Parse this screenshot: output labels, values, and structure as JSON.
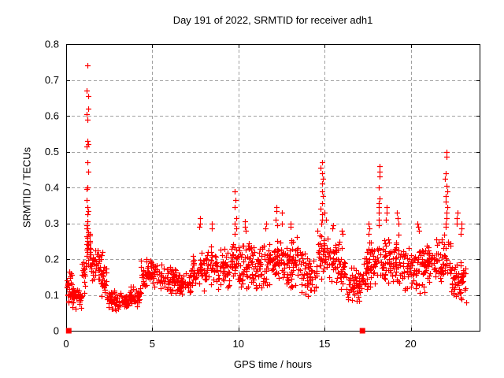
{
  "chart_data": {
    "type": "scatter",
    "title": "Day 191 of 2022, SRMTID for receiver adh1",
    "xlabel": "GPS time / hours",
    "ylabel": "SRMTID / TECUs",
    "xlim": [
      0,
      24
    ],
    "ylim": [
      0,
      0.8
    ],
    "xticks": {
      "values": [
        0,
        5,
        10,
        15,
        20
      ],
      "labels": [
        "0",
        "5",
        "10",
        "15",
        "20"
      ]
    },
    "yticks": {
      "values": [
        0,
        0.1,
        0.2,
        0.3,
        0.4,
        0.5,
        0.6,
        0.7,
        0.8
      ],
      "labels": [
        "0",
        "0.1",
        "0.2",
        "0.3",
        "0.4",
        "0.5",
        "0.6",
        "0.7",
        "0.8"
      ]
    },
    "grid": {
      "on": true,
      "color": "#a0a0a0",
      "dash": "4,3"
    },
    "legend": "none",
    "marker": {
      "type": "plus",
      "color": "#ff0000",
      "size": 7
    },
    "zero_marker": {
      "type": "filled-square",
      "color": "#ff0000",
      "size": 7
    },
    "background": "#ffffff",
    "seed": 191,
    "x_quantize": 120,
    "segments": [
      {
        "x0": 0.02,
        "x1": 0.3,
        "n": 26,
        "lo": 0.07,
        "hi": 0.18
      },
      {
        "x0": 0.3,
        "x1": 0.9,
        "n": 40,
        "lo": 0.055,
        "hi": 0.13
      },
      {
        "x0": 0.9,
        "x1": 1.15,
        "n": 18,
        "lo": 0.1,
        "hi": 0.22
      },
      {
        "x0": 1.15,
        "x1": 1.45,
        "n": 20,
        "lo": 0.16,
        "hi": 0.3
      },
      {
        "x0": 1.45,
        "x1": 1.95,
        "n": 35,
        "lo": 0.12,
        "hi": 0.24
      },
      {
        "x0": 1.95,
        "x1": 2.35,
        "n": 28,
        "lo": 0.085,
        "hi": 0.2
      },
      {
        "x0": 2.35,
        "x1": 3.25,
        "n": 55,
        "lo": 0.055,
        "hi": 0.115
      },
      {
        "x0": 3.25,
        "x1": 3.65,
        "n": 42,
        "lo": 0.06,
        "hi": 0.1
      },
      {
        "x0": 3.65,
        "x1": 4.35,
        "n": 40,
        "lo": 0.065,
        "hi": 0.13
      },
      {
        "x0": 4.35,
        "x1": 5.35,
        "n": 60,
        "lo": 0.115,
        "hi": 0.205
      },
      {
        "x0": 5.35,
        "x1": 6.35,
        "n": 62,
        "lo": 0.1,
        "hi": 0.19
      },
      {
        "x0": 6.35,
        "x1": 7.25,
        "n": 52,
        "lo": 0.09,
        "hi": 0.17
      },
      {
        "x0": 7.25,
        "x1": 8.15,
        "n": 55,
        "lo": 0.11,
        "hi": 0.22
      },
      {
        "x0": 8.15,
        "x1": 8.75,
        "n": 36,
        "lo": 0.12,
        "hi": 0.25
      },
      {
        "x0": 8.75,
        "x1": 9.55,
        "n": 46,
        "lo": 0.1,
        "hi": 0.235
      },
      {
        "x0": 9.55,
        "x1": 10.15,
        "n": 38,
        "lo": 0.12,
        "hi": 0.26
      },
      {
        "x0": 10.15,
        "x1": 11.15,
        "n": 62,
        "lo": 0.1,
        "hi": 0.255
      },
      {
        "x0": 11.15,
        "x1": 12.05,
        "n": 58,
        "lo": 0.11,
        "hi": 0.26
      },
      {
        "x0": 12.05,
        "x1": 12.65,
        "n": 40,
        "lo": 0.12,
        "hi": 0.275
      },
      {
        "x0": 12.65,
        "x1": 13.65,
        "n": 62,
        "lo": 0.11,
        "hi": 0.265
      },
      {
        "x0": 13.65,
        "x1": 14.55,
        "n": 55,
        "lo": 0.085,
        "hi": 0.225
      },
      {
        "x0": 14.55,
        "x1": 15.25,
        "n": 42,
        "lo": 0.13,
        "hi": 0.285
      },
      {
        "x0": 15.25,
        "x1": 16.25,
        "n": 58,
        "lo": 0.11,
        "hi": 0.255
      },
      {
        "x0": 16.25,
        "x1": 17.25,
        "n": 56,
        "lo": 0.06,
        "hi": 0.185
      },
      {
        "x0": 17.25,
        "x1": 18.05,
        "n": 50,
        "lo": 0.1,
        "hi": 0.25
      },
      {
        "x0": 18.05,
        "x1": 18.4,
        "n": 16,
        "lo": 0.13,
        "hi": 0.26
      },
      {
        "x0": 18.4,
        "x1": 19.05,
        "n": 40,
        "lo": 0.11,
        "hi": 0.265
      },
      {
        "x0": 19.05,
        "x1": 19.65,
        "n": 36,
        "lo": 0.12,
        "hi": 0.275
      },
      {
        "x0": 19.65,
        "x1": 20.85,
        "n": 72,
        "lo": 0.1,
        "hi": 0.26
      },
      {
        "x0": 20.85,
        "x1": 21.85,
        "n": 62,
        "lo": 0.12,
        "hi": 0.265
      },
      {
        "x0": 21.85,
        "x1": 22.35,
        "n": 24,
        "lo": 0.13,
        "hi": 0.28
      },
      {
        "x0": 22.35,
        "x1": 23.2,
        "n": 55,
        "lo": 0.07,
        "hi": 0.2
      }
    ],
    "spikes": [
      {
        "x": 1.22,
        "jitter": 0.05,
        "ys": [
          0.74,
          0.67,
          0.655,
          0.62,
          0.605,
          0.59,
          0.53,
          0.52,
          0.515,
          0.47,
          0.445,
          0.4,
          0.395,
          0.365,
          0.345,
          0.335,
          0.325,
          0.305,
          0.295,
          0.285,
          0.275,
          0.26,
          0.25,
          0.24,
          0.23,
          0.22
        ]
      },
      {
        "x": 2.05,
        "jitter": 0.06,
        "ys": [
          0.22,
          0.21,
          0.2
        ]
      },
      {
        "x": 7.8,
        "jitter": 0.07,
        "ys": [
          0.315,
          0.3,
          0.29
        ]
      },
      {
        "x": 8.45,
        "jitter": 0.06,
        "ys": [
          0.3,
          0.285
        ]
      },
      {
        "x": 9.8,
        "jitter": 0.08,
        "ys": [
          0.39,
          0.365,
          0.345,
          0.315,
          0.3,
          0.285,
          0.27
        ]
      },
      {
        "x": 10.4,
        "jitter": 0.08,
        "ys": [
          0.305,
          0.29,
          0.28
        ]
      },
      {
        "x": 11.6,
        "jitter": 0.06,
        "ys": [
          0.3,
          0.285
        ]
      },
      {
        "x": 12.25,
        "jitter": 0.09,
        "ys": [
          0.345,
          0.335,
          0.31,
          0.295
        ]
      },
      {
        "x": 12.55,
        "jitter": 0.05,
        "ys": [
          0.33,
          0.3
        ]
      },
      {
        "x": 13.0,
        "jitter": 0.06,
        "ys": [
          0.3,
          0.29
        ]
      },
      {
        "x": 14.85,
        "jitter": 0.07,
        "ys": [
          0.47,
          0.455,
          0.44,
          0.425,
          0.41,
          0.39,
          0.375,
          0.355,
          0.34,
          0.325,
          0.31,
          0.3
        ]
      },
      {
        "x": 15.05,
        "jitter": 0.05,
        "ys": [
          0.33,
          0.31
        ]
      },
      {
        "x": 15.5,
        "jitter": 0.05,
        "ys": [
          0.295,
          0.285
        ]
      },
      {
        "x": 16.0,
        "jitter": 0.05,
        "ys": [
          0.28,
          0.27
        ]
      },
      {
        "x": 17.55,
        "jitter": 0.07,
        "ys": [
          0.3,
          0.285,
          0.27
        ]
      },
      {
        "x": 18.15,
        "jitter": 0.06,
        "ys": [
          0.46,
          0.445,
          0.43,
          0.4,
          0.37,
          0.355,
          0.345,
          0.33,
          0.31,
          0.295
        ]
      },
      {
        "x": 18.6,
        "jitter": 0.06,
        "ys": [
          0.345,
          0.33,
          0.31
        ]
      },
      {
        "x": 19.25,
        "jitter": 0.07,
        "ys": [
          0.33,
          0.315,
          0.3
        ]
      },
      {
        "x": 20.45,
        "jitter": 0.1,
        "ys": [
          0.3,
          0.29,
          0.28
        ]
      },
      {
        "x": 22.05,
        "jitter": 0.08,
        "ys": [
          0.5,
          0.485,
          0.44,
          0.425,
          0.405,
          0.39,
          0.375,
          0.36,
          0.345,
          0.33,
          0.315,
          0.3,
          0.29
        ]
      },
      {
        "x": 22.65,
        "jitter": 0.06,
        "ys": [
          0.33,
          0.315,
          0.3
        ]
      },
      {
        "x": 22.95,
        "jitter": 0.05,
        "ys": [
          0.3,
          0.285,
          0.27
        ]
      }
    ],
    "zero_markers": [
      {
        "x": 0.15,
        "y": 0
      },
      {
        "x": 17.2,
        "y": 0
      }
    ]
  }
}
